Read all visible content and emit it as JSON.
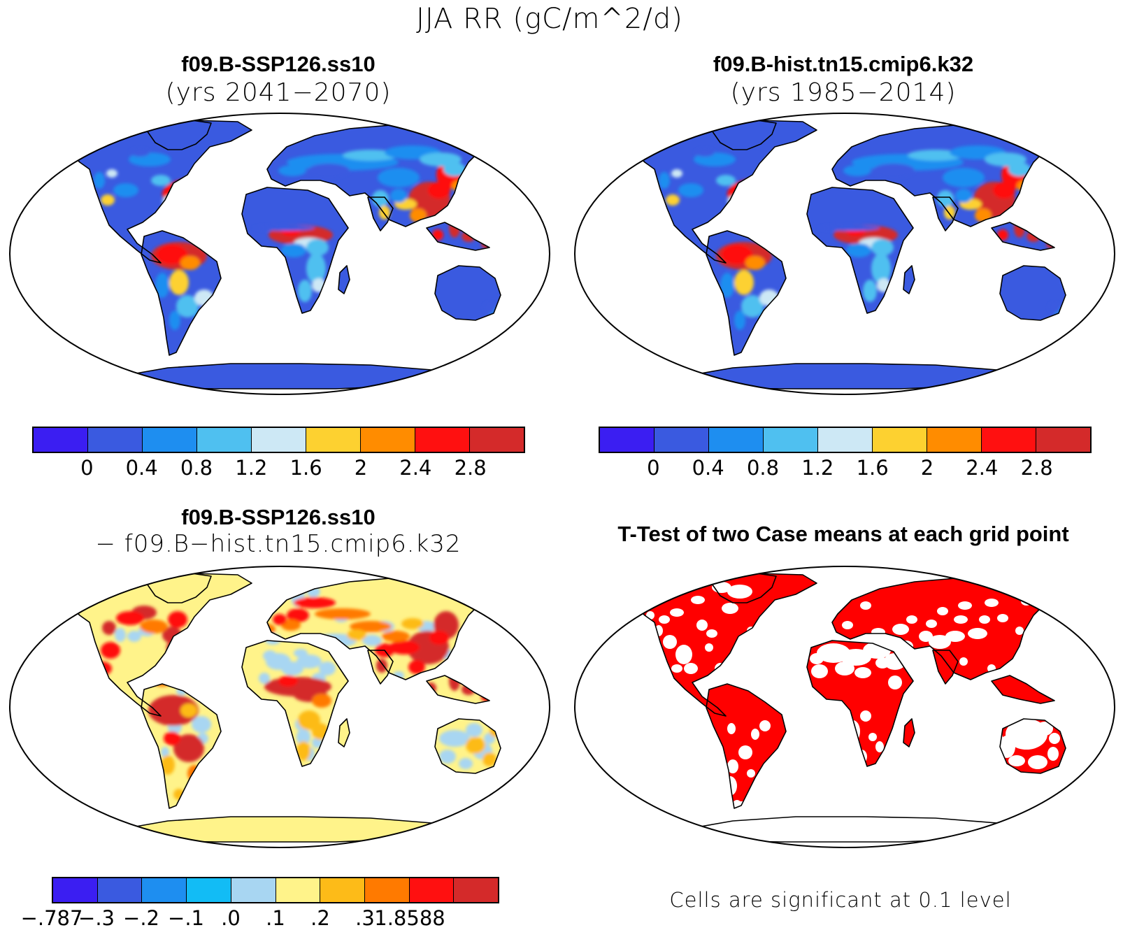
{
  "main_title": "JJA RR (gC/m^2/d)",
  "colors": {
    "abs_levels": [
      "#3b1ef2",
      "#3a5ae0",
      "#1e8ef0",
      "#4fc0f0",
      "#cde8f5",
      "#fdd130",
      "#ff8c00",
      "#ff1010",
      "#d42a2a"
    ],
    "diff_levels": [
      "#3b1ef2",
      "#3a5ae0",
      "#1e8ef0",
      "#12bcf5",
      "#a8d6f2",
      "#fff38a",
      "#fdbb18",
      "#ff7a00",
      "#ff1010",
      "#d42a2a"
    ],
    "significant": "#ff0000",
    "ocean": "#ffffff",
    "coastline": "#000000"
  },
  "panels": [
    {
      "id": "future",
      "title": "f09.B-SSP126.ss10",
      "subtitle": "(yrs 2041−2070)",
      "colorbar_ticks": [
        "0",
        "0.4",
        "0.8",
        "1.2",
        "1.6",
        "2",
        "2.4",
        "2.8"
      ]
    },
    {
      "id": "historical",
      "title": "f09.B-hist.tn15.cmip6.k32",
      "subtitle": "(yrs 1985−2014)",
      "colorbar_ticks": [
        "0",
        "0.4",
        "0.8",
        "1.2",
        "1.6",
        "2",
        "2.4",
        "2.8"
      ]
    },
    {
      "id": "difference",
      "title": "f09.B-SSP126.ss10",
      "subtitle": "− f09.B−hist.tn15.cmip6.k32",
      "colorbar_ticks": [
        "−.787",
        "−.3",
        "−.2",
        "−.1",
        ".0",
        ".1",
        ".2",
        ".3",
        "1.8588"
      ]
    },
    {
      "id": "ttest",
      "title": "T-Test of two Case means at each grid point",
      "note": "Cells are significant at 0.1 level"
    }
  ]
}
